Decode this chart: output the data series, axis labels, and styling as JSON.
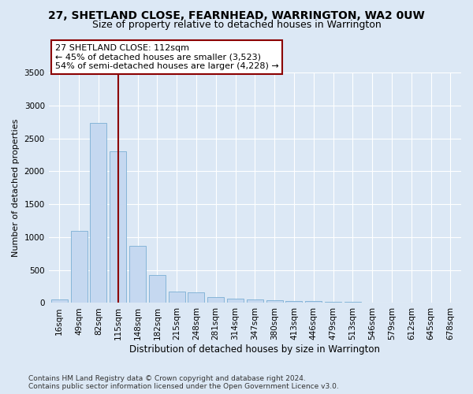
{
  "title": "27, SHETLAND CLOSE, FEARNHEAD, WARRINGTON, WA2 0UW",
  "subtitle": "Size of property relative to detached houses in Warrington",
  "xlabel": "Distribution of detached houses by size in Warrington",
  "ylabel": "Number of detached properties",
  "categories": [
    "16sqm",
    "49sqm",
    "82sqm",
    "115sqm",
    "148sqm",
    "182sqm",
    "215sqm",
    "248sqm",
    "281sqm",
    "314sqm",
    "347sqm",
    "380sqm",
    "413sqm",
    "446sqm",
    "479sqm",
    "513sqm",
    "546sqm",
    "579sqm",
    "612sqm",
    "645sqm",
    "678sqm"
  ],
  "values": [
    50,
    1100,
    2730,
    2300,
    870,
    420,
    170,
    160,
    90,
    60,
    50,
    40,
    30,
    25,
    20,
    15,
    10,
    8,
    5,
    3,
    2
  ],
  "bar_color": "#c5d8f0",
  "bar_edge_color": "#7bafd4",
  "vline_x": 3,
  "vline_color": "#8b0000",
  "annotation_text": "27 SHETLAND CLOSE: 112sqm\n← 45% of detached houses are smaller (3,523)\n54% of semi-detached houses are larger (4,228) →",
  "annotation_box_color": "#ffffff",
  "annotation_edge_color": "#8b0000",
  "ylim": [
    0,
    3500
  ],
  "yticks": [
    0,
    500,
    1000,
    1500,
    2000,
    2500,
    3000,
    3500
  ],
  "background_color": "#dce8f5",
  "grid_color": "#ffffff",
  "footer_line1": "Contains HM Land Registry data © Crown copyright and database right 2024.",
  "footer_line2": "Contains public sector information licensed under the Open Government Licence v3.0.",
  "title_fontsize": 10,
  "subtitle_fontsize": 9,
  "xlabel_fontsize": 8.5,
  "ylabel_fontsize": 8,
  "tick_fontsize": 7.5,
  "annotation_fontsize": 8,
  "footer_fontsize": 6.5
}
